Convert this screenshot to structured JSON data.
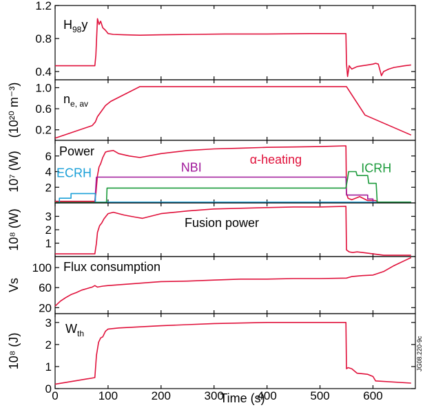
{
  "chart_data": {
    "type": "line",
    "xlabel": "Time (s)",
    "xlim": [
      0,
      680
    ],
    "x_ticks": [
      "0",
      "100",
      "200",
      "300",
      "400",
      "500",
      "600"
    ],
    "x_tick_values": [
      0,
      100,
      200,
      300,
      400,
      500,
      600
    ],
    "figure_id": "JG08.220-9c",
    "colors": {
      "main": "#e0103a",
      "nbi": "#a0189a",
      "ecrh": "#1aa0d8",
      "icrh": "#1a9a3a",
      "axis": "#000000"
    },
    "panels": [
      {
        "id": "h98",
        "label": "H",
        "label_sub": "98",
        "label_tail": "y",
        "ylabel": "",
        "ylim": [
          0.3,
          1.2
        ],
        "y_ticks": [
          "1.2",
          "0.8",
          "0.4"
        ],
        "y_tick_values": [
          1.2,
          0.8,
          0.4
        ],
        "series": [
          {
            "color_key": "main",
            "x": [
              0,
              75,
              77,
              80,
              83,
              86,
              90,
              95,
              100,
              110,
              130,
              160,
              200,
              260,
              320,
              400,
              480,
              549,
              550,
              552,
              555,
              560,
              570,
              580,
              590,
              600,
              605,
              610,
              613,
              616,
              620,
              630,
              640,
              650,
              660,
              672
            ],
            "y": [
              0.47,
              0.47,
              0.6,
              1.04,
              0.97,
              1.01,
              0.93,
              0.9,
              0.86,
              0.85,
              0.845,
              0.84,
              0.845,
              0.85,
              0.855,
              0.855,
              0.86,
              0.86,
              0.5,
              0.34,
              0.47,
              0.43,
              0.46,
              0.47,
              0.48,
              0.49,
              0.5,
              0.49,
              0.42,
              0.35,
              0.4,
              0.43,
              0.45,
              0.46,
              0.47,
              0.48
            ]
          }
        ]
      },
      {
        "id": "ne",
        "label": "n",
        "label_sub": "e, av",
        "label_tail": "",
        "ylabel": "(10²⁰ m⁻³)",
        "ylim": [
          0,
          1.15
        ],
        "y_ticks": [
          "1.0",
          "0.6",
          "0.2"
        ],
        "y_tick_values": [
          1.0,
          0.6,
          0.2
        ],
        "series": [
          {
            "color_key": "main",
            "x": [
              0,
              70,
              76,
              80,
              95,
              105,
              160,
              550,
              585,
              672
            ],
            "y": [
              0.04,
              0.28,
              0.35,
              0.45,
              0.66,
              0.74,
              1.02,
              1.02,
              0.48,
              0.1
            ]
          }
        ]
      },
      {
        "id": "power",
        "label": "Power",
        "label_sub": "",
        "label_tail": "",
        "ylabel": "10⁷ (W)",
        "ylim": [
          0,
          8
        ],
        "y_ticks": [
          "6",
          "4",
          "2"
        ],
        "y_tick_values": [
          6,
          4,
          2
        ],
        "annotations": [
          {
            "text": "ECRH",
            "x": 0,
            "y": 3.3,
            "color_key": "ecrh"
          },
          {
            "text": "NBI",
            "x": 235,
            "y": 4.0,
            "color_key": "nbi"
          },
          {
            "text": "α-heating",
            "x": 365,
            "y": 5.0,
            "color_key": "main"
          },
          {
            "text": "ICRH",
            "x": 575,
            "y": 3.9,
            "color_key": "icrh"
          }
        ],
        "series": [
          {
            "name": "α-heating",
            "color_key": "main",
            "x": [
              0,
              75,
              77,
              80,
              83,
              86,
              90,
              95,
              100,
              110,
              120,
              140,
              160,
              200,
              250,
              300,
              350,
              400,
              450,
              500,
              549,
              550,
              553,
              560,
              575,
              590,
              605,
              610,
              620,
              672
            ],
            "y": [
              0.2,
              0.2,
              1.2,
              3.5,
              4.6,
              5.0,
              5.8,
              6.5,
              6.6,
              6.7,
              6.3,
              6.0,
              5.8,
              6.3,
              6.7,
              6.9,
              7.0,
              7.1,
              7.15,
              7.2,
              7.3,
              1.2,
              0.6,
              0.4,
              0.8,
              0.3,
              0.3,
              0.1,
              0.1,
              0.1
            ]
          },
          {
            "name": "NBI",
            "color_key": "nbi",
            "x": [
              0,
              75,
              78,
              549,
              550,
              560,
              590,
              590,
              600,
              600,
              672
            ],
            "y": [
              0.05,
              0.05,
              3.3,
              3.3,
              1.0,
              1.0,
              1.0,
              0.5,
              0.5,
              0.05,
              0.05
            ]
          },
          {
            "name": "ECRH",
            "color_key": "ecrh",
            "x": [
              0,
              8,
              8,
              30,
              30,
              76,
              76,
              672
            ],
            "y": [
              0.0,
              0.0,
              0.6,
              0.6,
              1.2,
              1.2,
              0.1,
              0.1
            ]
          },
          {
            "name": "ICRH",
            "color_key": "icrh",
            "x": [
              0,
              97,
              98,
              549,
              552,
              554,
              568,
              570,
              590,
              592,
              606,
              608,
              672
            ],
            "y": [
              0.05,
              0.05,
              1.9,
              1.9,
              3.1,
              4.0,
              4.0,
              3.5,
              3.5,
              2.5,
              2.5,
              0.1,
              0.1
            ]
          }
        ]
      },
      {
        "id": "fusion",
        "label": "Fusion power",
        "label_sub": "",
        "label_tail": "",
        "ylabel": "10⁸ (W)",
        "ylim": [
          0,
          4
        ],
        "y_ticks": [
          "3",
          "2",
          "1"
        ],
        "y_tick_values": [
          3,
          2,
          1
        ],
        "series": [
          {
            "color_key": "main",
            "x": [
              0,
              75,
              78,
              80,
              84,
              88,
              92,
              96,
              100,
              110,
              130,
              150,
              165,
              200,
              250,
              300,
              350,
              400,
              450,
              500,
              549,
              550,
              555,
              562,
              570,
              580,
              600,
              610,
              620,
              672
            ],
            "y": [
              0.2,
              0.2,
              1.0,
              1.8,
              2.3,
              2.5,
              2.8,
              3.0,
              3.2,
              3.3,
              3.1,
              2.95,
              2.85,
              3.2,
              3.4,
              3.55,
              3.6,
              3.65,
              3.7,
              3.7,
              3.75,
              0.5,
              0.35,
              0.3,
              0.35,
              0.3,
              0.2,
              0.15,
              0.1,
              0.1
            ]
          }
        ]
      },
      {
        "id": "flux",
        "label": "Flux consumption",
        "label_sub": "",
        "label_tail": "",
        "ylabel": "Vs",
        "ylim": [
          8,
          122
        ],
        "y_ticks": [
          "100",
          "60",
          "20"
        ],
        "y_tick_values": [
          100,
          60,
          20
        ],
        "series": [
          {
            "color_key": "main",
            "x": [
              0,
              10,
              20,
              30,
              40,
              50,
              60,
              70,
              75,
              80,
              90,
              100,
              150,
              200,
              250,
              300,
              350,
              400,
              450,
              500,
              550,
              560,
              580,
              600,
              620,
              640,
              660,
              672
            ],
            "y": [
              23,
              33,
              40,
              46,
              50,
              55,
              58,
              61,
              64,
              61,
              63,
              64,
              68,
              72,
              73,
              75,
              77,
              77,
              78,
              78,
              79,
              82,
              84,
              85,
              92,
              104,
              114,
              120
            ]
          }
        ]
      },
      {
        "id": "wth",
        "label": "W",
        "label_sub": "th",
        "label_tail": "",
        "ylabel": "10⁸ (J)",
        "ylim": [
          0,
          3.4
        ],
        "y_ticks": [
          "3",
          "2",
          "1",
          "0"
        ],
        "y_tick_values": [
          3,
          2,
          1,
          0
        ],
        "series": [
          {
            "color_key": "main",
            "x": [
              0,
              50,
              75,
              78,
              82,
              86,
              90,
              95,
              100,
              120,
              160,
              200,
              250,
              300,
              400,
              500,
              549,
              550,
              553,
              560,
              570,
              590,
              600,
              605,
              672
            ],
            "y": [
              0.2,
              0.4,
              0.5,
              1.5,
              2.1,
              2.3,
              2.35,
              2.6,
              2.7,
              2.75,
              2.8,
              2.85,
              2.9,
              2.95,
              3.0,
              3.0,
              3.0,
              0.9,
              0.95,
              0.9,
              0.7,
              0.65,
              0.55,
              0.35,
              0.25
            ]
          }
        ]
      }
    ]
  }
}
